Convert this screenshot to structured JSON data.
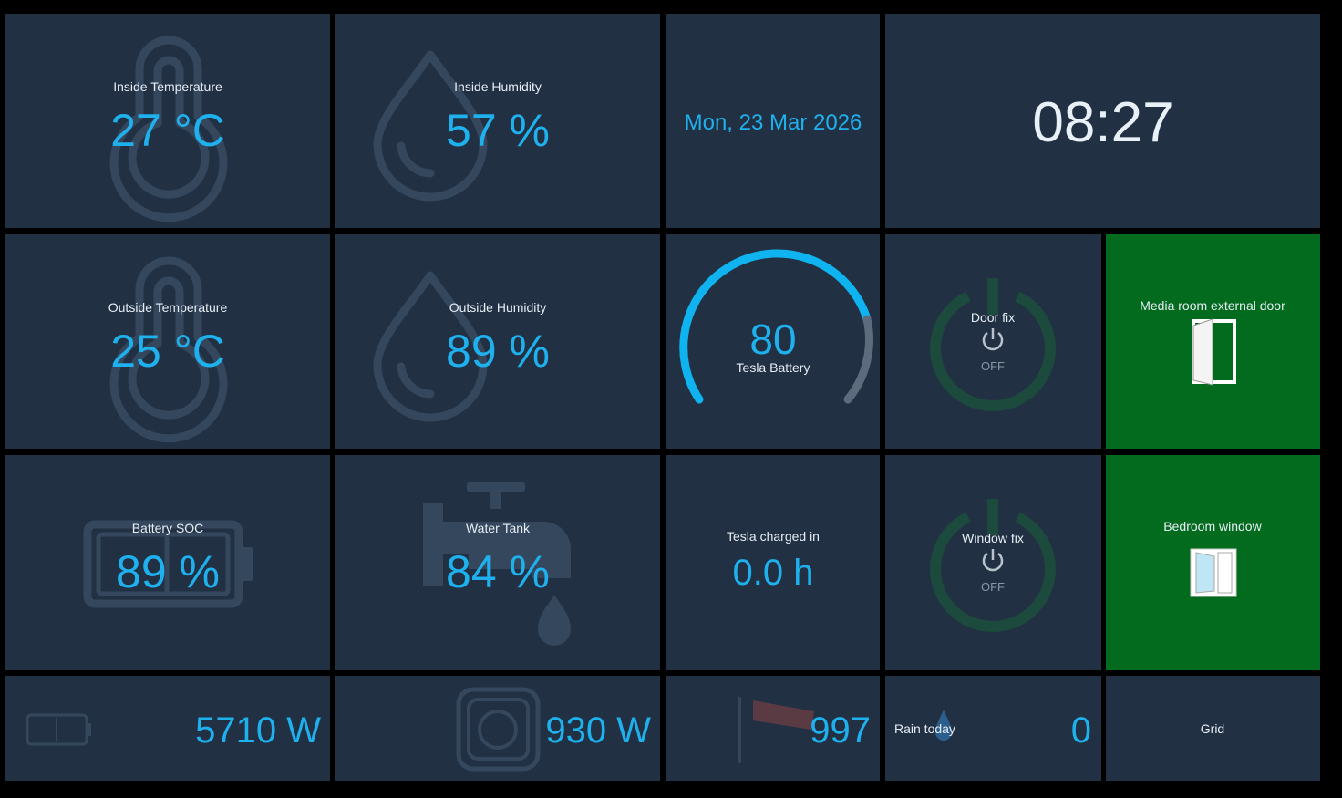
{
  "tiles": [
    {
      "label": "Inside Temperature",
      "value": "27 °C"
    },
    {
      "label": "Inside Humidity",
      "value": "57 %"
    },
    {
      "value": "Mon, 23 Mar 2026"
    },
    {
      "value": "08:27"
    },
    {
      "label": "Outside Temperature",
      "value": "25 °C"
    },
    {
      "label": "Outside Humidity",
      "value": "89 %"
    },
    {
      "label": "Tesla Battery",
      "value": "80"
    },
    {
      "label": "Door fix",
      "state": "OFF"
    },
    {
      "label": "Media room external door"
    },
    {
      "label": "Battery SOC",
      "value": "89 %"
    },
    {
      "label": "Water Tank",
      "value": "84 %"
    },
    {
      "label": "Tesla charged in",
      "value": "0.0 h"
    },
    {
      "label": "Window fix",
      "state": "OFF"
    },
    {
      "label": "Bedroom window"
    },
    {
      "value": "5710 W"
    },
    {
      "value": "930 W"
    },
    {
      "value": "997"
    },
    {
      "label": "Rain today",
      "value": "0"
    },
    {
      "label": "Grid"
    }
  ]
}
